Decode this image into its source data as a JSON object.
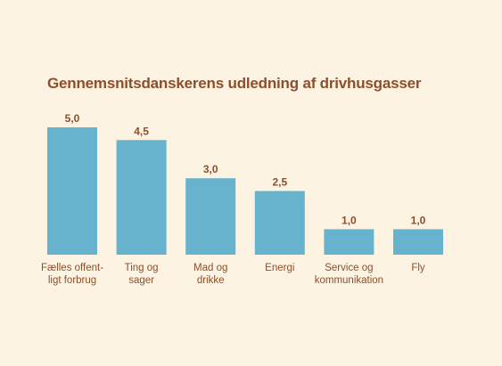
{
  "chart_data": {
    "type": "bar",
    "title": "Gennemsnitsdanskerens udledning af drivhusgasser",
    "xlabel": "",
    "ylabel": "",
    "ylim": [
      0,
      5
    ],
    "grid": false,
    "legend": "none",
    "categories": [
      "Fælles offent-\nligt forbrug",
      "Ting og\nsager",
      "Mad og\ndrikke",
      "Energi",
      "Service og\nkommunikation",
      "Fly"
    ],
    "values": [
      5.0,
      4.5,
      3.0,
      2.5,
      1.0,
      1.0
    ],
    "value_labels": [
      "5,0",
      "4,5",
      "3,0",
      "2,5",
      "1,0",
      "1,0"
    ],
    "colors": {
      "bar": "#67b2cc",
      "text": "#8d4f2b",
      "background": "#fcf3e2"
    }
  }
}
